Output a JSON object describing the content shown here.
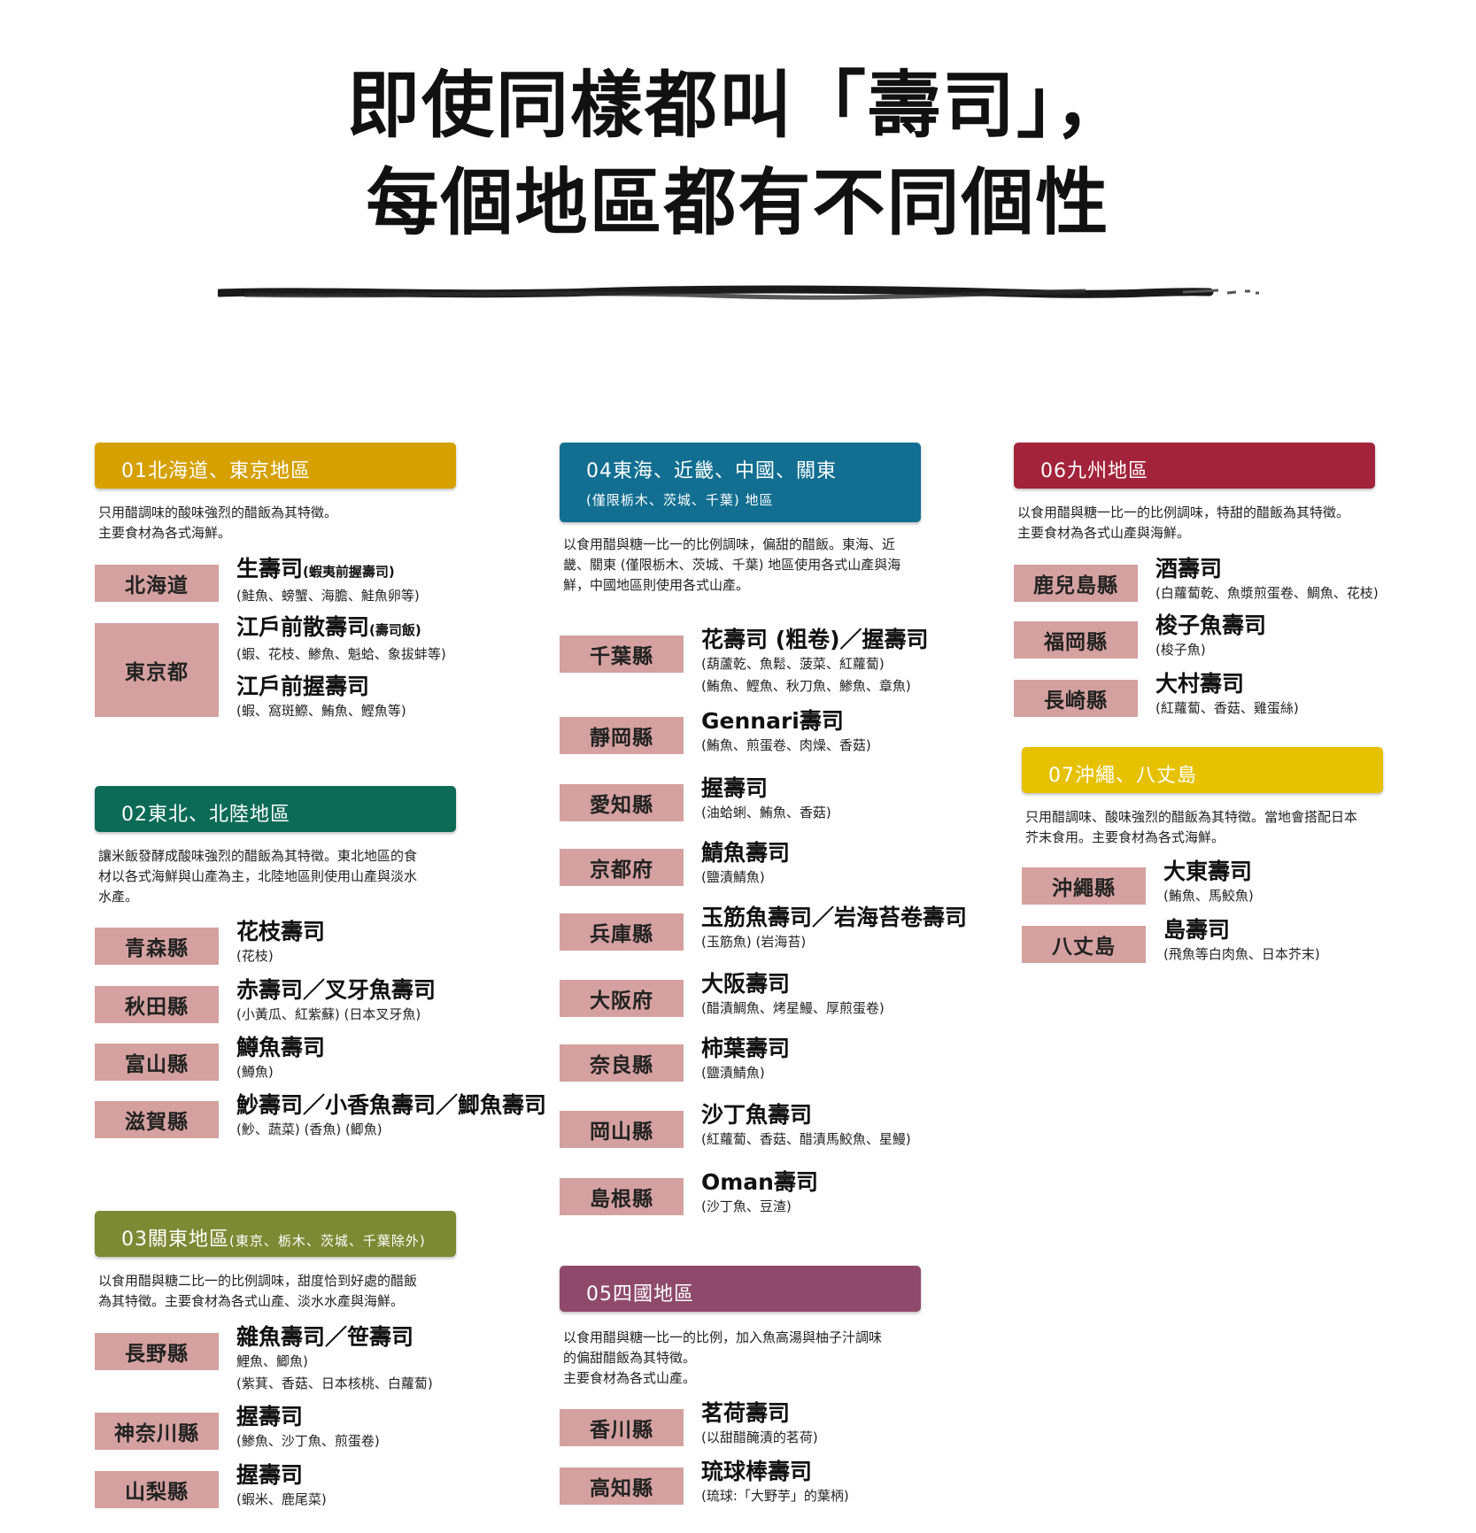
{
  "title": {
    "line1": "即使同樣都叫「壽司」，",
    "line2": "每個地區都有不同個性"
  },
  "regions": {
    "r1": {
      "color": "#d6a100",
      "title": "01北海道、東京地區",
      "desc": "只用醋調味的酸味強烈的醋飯為其特徵。\n主要食材為各式海鮮。",
      "p1": {
        "name": "北海道",
        "s1": "生壽司",
        "s1_note": "(蝦夷前握壽司)",
        "s1_ing": "(鮭魚、螃蟹、海膽、鮭魚卵等)"
      },
      "p2": {
        "name": "東京都",
        "s1": "江戶前散壽司",
        "s1_note": "(壽司飯)",
        "s1_ing": "(蝦、花枝、鯵魚、魁蛤、象拔蚌等)",
        "s2": "江戶前握壽司",
        "s2_ing": "(蝦、窩斑鰶、鮪魚、鰹魚等)"
      }
    },
    "r2": {
      "color": "#0c6b57",
      "title": "02東北、北陸地區",
      "desc": "讓米飯發酵成酸味強烈的醋飯為其特徵。東北地區的食\n材以各式海鮮與山產為主，北陸地區則使用山產與淡水\n水產。",
      "p1": {
        "name": "青森縣",
        "s1": "花枝壽司",
        "s1_ing": "(花枝)"
      },
      "p2": {
        "name": "秋田縣",
        "s1": "赤壽司／叉牙魚壽司",
        "s1_ing": "(小黃瓜、紅紫蘇) (日本叉牙魚)"
      },
      "p3": {
        "name": "富山縣",
        "s1": "鱒魚壽司",
        "s1_ing": "(鱒魚)"
      },
      "p4": {
        "name": "滋賀縣",
        "s1": "魦壽司／小香魚壽司／鯽魚壽司",
        "s1_ing": "(魦、蔬菜) (香魚) (鯽魚)"
      }
    },
    "r3": {
      "color": "#7d8a34",
      "title": "03關東地區",
      "title_note": "(東京、栃木、茨城、千葉除外)",
      "desc": "以食用醋與糖二比一的比例調味，甜度恰到好處的醋飯\n為其特徵。主要食材為各式山產、淡水水產與海鮮。",
      "p1": {
        "name": "長野縣",
        "s1": "雜魚壽司／笹壽司",
        "s1_ing": "鯉魚、鯽魚)",
        "s1_ing2": "(紫萁、香菇、日本核桃、白蘿蔔)"
      },
      "p2": {
        "name": "神奈川縣",
        "s1": "握壽司",
        "s1_ing": "(鯵魚、沙丁魚、煎蛋卷)"
      },
      "p3": {
        "name": "山梨縣",
        "s1": "握壽司",
        "s1_ing": "(蝦米、鹿尾菜)"
      }
    },
    "r4": {
      "color": "#126f92",
      "title": "04東海、近畿、中國、關東",
      "subtitle": "(僅限栃木、茨城、千葉) 地區",
      "desc": "以食用醋與糖一比一的比例調味，偏甜的醋飯。東海、近\n畿、關東 (僅限栃木、茨城、千葉) 地區使用各式山產與海\n鮮，中國地區則使用各式山產。",
      "p1": {
        "name": "千葉縣",
        "s1": "花壽司 (粗卷)／握壽司",
        "s1_ing": "(葫蘆乾、魚鬆、菠菜、紅蘿蔔)",
        "s1_ing2": "(鮪魚、鰹魚、秋刀魚、鯵魚、章魚)"
      },
      "p2": {
        "name": "靜岡縣",
        "s1": "Gennari壽司",
        "s1_ing": "(鮪魚、煎蛋卷、肉燥、香菇)"
      },
      "p3": {
        "name": "愛知縣",
        "s1": "握壽司",
        "s1_ing": "(油蛤蜊、鮪魚、香菇)"
      },
      "p4": {
        "name": "京都府",
        "s1": "鯖魚壽司",
        "s1_ing": "(鹽漬鯖魚)"
      },
      "p5": {
        "name": "兵庫縣",
        "s1": "玉筋魚壽司／岩海苔卷壽司",
        "s1_ing": "(玉筋魚) (岩海苔)"
      },
      "p6": {
        "name": "大阪府",
        "s1": "大阪壽司",
        "s1_ing": "(醋漬鯛魚、烤星鰻、厚煎蛋卷)"
      },
      "p7": {
        "name": "奈良縣",
        "s1": "柿葉壽司",
        "s1_ing": "(鹽漬鯖魚)"
      },
      "p8": {
        "name": "岡山縣",
        "s1": "沙丁魚壽司",
        "s1_ing": "(紅蘿蔔、香菇、醋漬馬鮫魚、星鰻)"
      },
      "p9": {
        "name": "島根縣",
        "s1": "Oman壽司",
        "s1_ing": "(沙丁魚、豆渣)"
      }
    },
    "r5": {
      "color": "#8f4a6b",
      "title": "05四國地區",
      "desc": "以食用醋與糖一比一的比例，加入魚高湯與柚子汁調味\n的偏甜醋飯為其特徵。\n主要食材為各式山產。",
      "p1": {
        "name": "香川縣",
        "s1": "茗荷壽司",
        "s1_ing": "(以甜醋醃漬的茗荷)"
      },
      "p2": {
        "name": "高知縣",
        "s1": "琉球棒壽司",
        "s1_ing": "(琉球:「大野芋」的葉柄)"
      }
    },
    "r6": {
      "color": "#a3233a",
      "title": "06九州地區",
      "desc": "以食用醋與糖一比一的比例調味，特甜的醋飯為其特徵。\n主要食材為各式山產與海鮮。",
      "p1": {
        "name": "鹿兒島縣",
        "s1": "酒壽司",
        "s1_ing": "(白蘿蔔乾、魚漿煎蛋卷、鯛魚、花枝)"
      },
      "p2": {
        "name": "福岡縣",
        "s1": "梭子魚壽司",
        "s1_ing": "(梭子魚)"
      },
      "p3": {
        "name": "長崎縣",
        "s1": "大村壽司",
        "s1_ing": "(紅蘿蔔、香菇、雞蛋絲)"
      }
    },
    "r7": {
      "color": "#e6c100",
      "title": "07沖繩、八丈島",
      "desc": "只用醋調味、酸味強烈的醋飯為其特徵。當地會搭配日本\n芥末食用。主要食材為各式海鮮。",
      "p1": {
        "name": "沖繩縣",
        "s1": "大東壽司",
        "s1_ing": "(鮪魚、馬鮫魚)"
      },
      "p2": {
        "name": "八丈島",
        "s1": "島壽司",
        "s1_ing": "(飛魚等白肉魚、日本芥末)"
      }
    }
  }
}
